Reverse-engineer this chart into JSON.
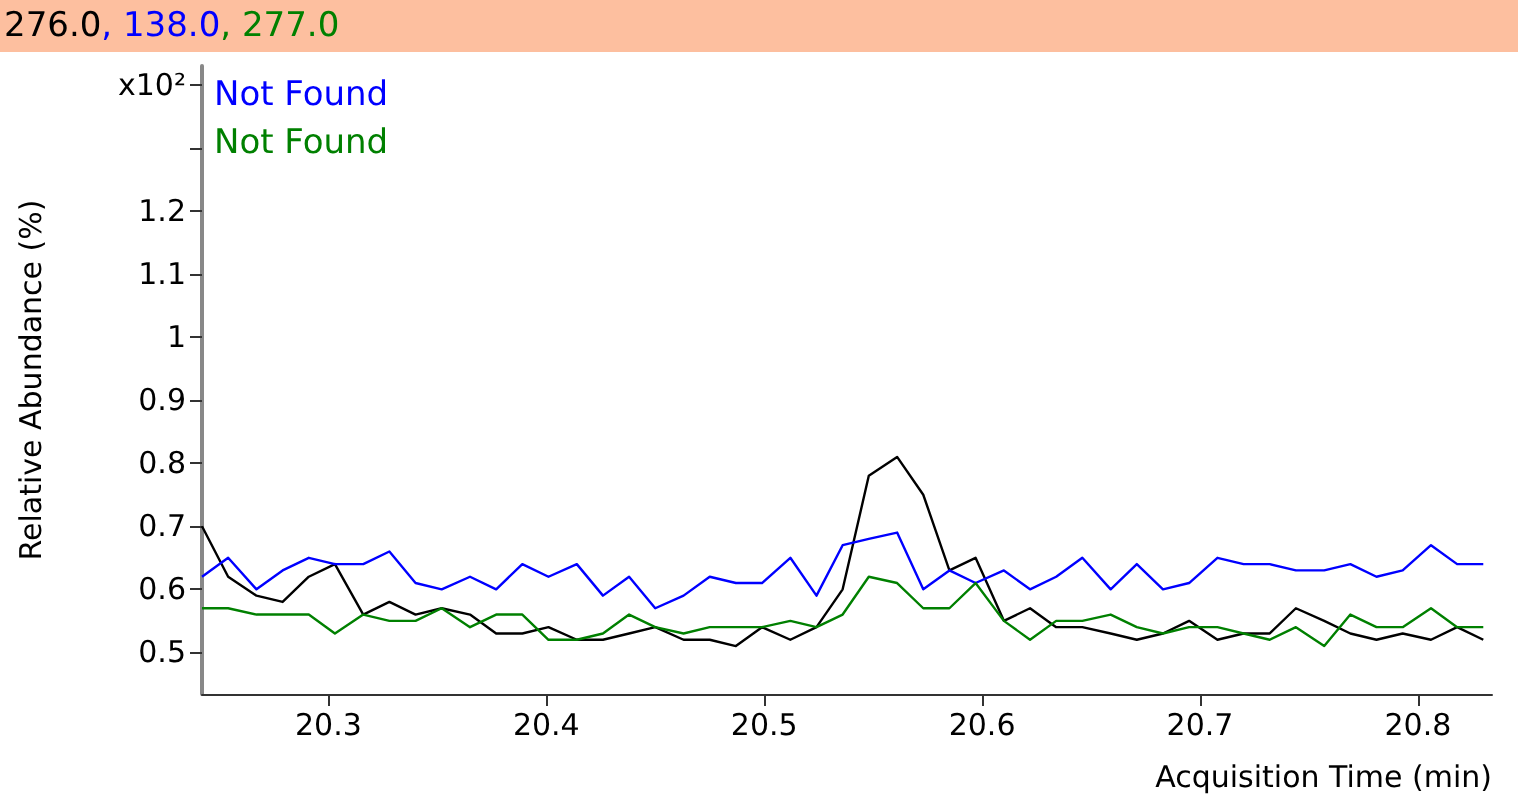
{
  "chart_data": {
    "type": "line",
    "title": "276.0, 138.0, 277.0",
    "xlabel": "Acquisition Time (min)",
    "ylabel": "Relative Abundance (%)",
    "annotations": [
      "Not Found",
      "Not Found"
    ],
    "x": [
      20.242,
      20.254,
      20.267,
      20.279,
      20.291,
      20.303,
      20.316,
      20.328,
      20.34,
      20.352,
      20.365,
      20.377,
      20.389,
      20.401,
      20.414,
      20.426,
      20.438,
      20.45,
      20.463,
      20.475,
      20.487,
      20.499,
      20.512,
      20.524,
      20.536,
      20.548,
      20.561,
      20.573,
      20.585,
      20.597,
      20.61,
      20.622,
      20.634,
      20.646,
      20.659,
      20.671,
      20.683,
      20.695,
      20.708,
      20.72,
      20.732,
      20.744,
      20.757,
      20.769,
      20.781,
      20.793,
      20.806,
      20.818,
      20.83
    ],
    "series": [
      {
        "color": "#000000",
        "values": [
          0.7,
          0.62,
          0.59,
          0.58,
          0.62,
          0.64,
          0.56,
          0.58,
          0.56,
          0.57,
          0.56,
          0.53,
          0.53,
          0.54,
          0.52,
          0.52,
          0.53,
          0.54,
          0.52,
          0.52,
          0.51,
          0.54,
          0.52,
          0.54,
          0.6,
          0.78,
          0.81,
          0.75,
          0.63,
          0.65,
          0.55,
          0.57,
          0.54,
          0.54,
          0.53,
          0.52,
          0.53,
          0.55,
          0.52,
          0.53,
          0.53,
          0.57,
          0.55,
          0.53,
          0.52,
          0.53,
          0.52,
          0.54,
          0.52
        ]
      },
      {
        "color": "#0000ff",
        "values": [
          0.62,
          0.65,
          0.6,
          0.63,
          0.65,
          0.64,
          0.64,
          0.66,
          0.61,
          0.6,
          0.62,
          0.6,
          0.64,
          0.62,
          0.64,
          0.59,
          0.62,
          0.57,
          0.59,
          0.62,
          0.61,
          0.61,
          0.65,
          0.59,
          0.67,
          0.68,
          0.69,
          0.6,
          0.63,
          0.61,
          0.63,
          0.6,
          0.62,
          0.65,
          0.6,
          0.64,
          0.6,
          0.61,
          0.65,
          0.64,
          0.64,
          0.63,
          0.63,
          0.64,
          0.62,
          0.63,
          0.67,
          0.64,
          0.64
        ]
      },
      {
        "color": "#008000",
        "values": [
          0.57,
          0.57,
          0.56,
          0.56,
          0.56,
          0.53,
          0.56,
          0.55,
          0.55,
          0.57,
          0.54,
          0.56,
          0.56,
          0.52,
          0.52,
          0.53,
          0.56,
          0.54,
          0.53,
          0.54,
          0.54,
          0.54,
          0.55,
          0.54,
          0.56,
          0.62,
          0.61,
          0.57,
          0.57,
          0.61,
          0.55,
          0.52,
          0.55,
          0.55,
          0.56,
          0.54,
          0.53,
          0.54,
          0.54,
          0.53,
          0.52,
          0.54,
          0.51,
          0.56,
          0.54,
          0.54,
          0.57,
          0.54,
          0.54
        ]
      }
    ],
    "xlim": [
      20.242,
      20.834
    ],
    "xticks": [
      20.3,
      20.4,
      20.5,
      20.6,
      20.7,
      20.8
    ],
    "ylim": [
      0.434,
      1.43
    ],
    "yticks": [
      0.5,
      0.6,
      0.7,
      0.8,
      0.9,
      1,
      1.1,
      1.2,
      {
        "value": 1.3,
        "label": null
      },
      {
        "value": 1.4,
        "label": "x10²"
      }
    ],
    "grid": false,
    "marker": "none",
    "line_style": "solid"
  }
}
